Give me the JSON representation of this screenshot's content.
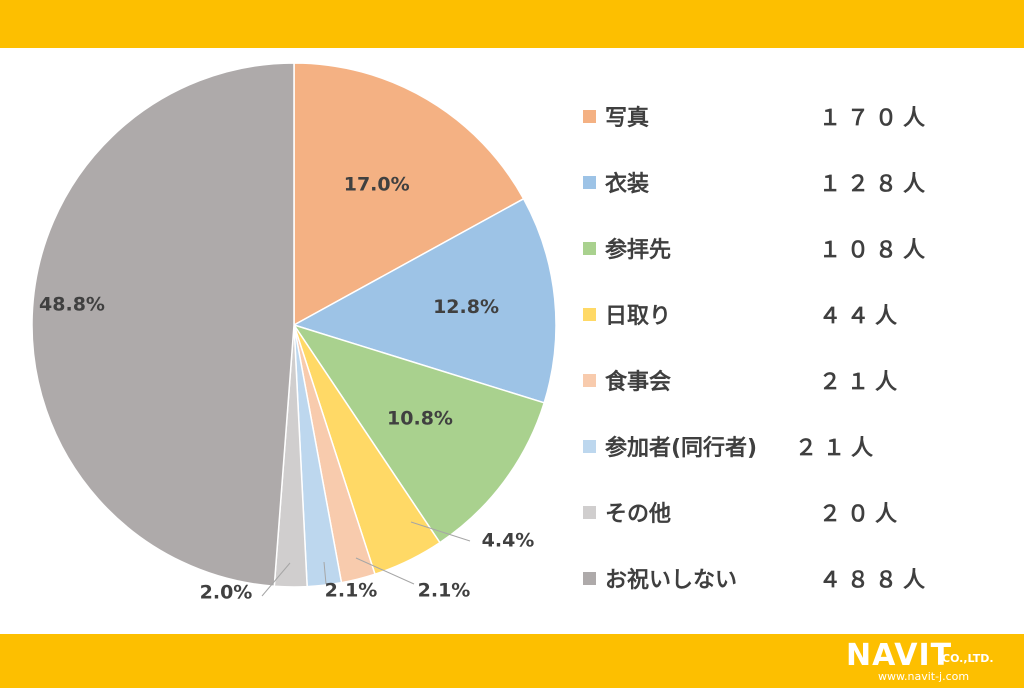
{
  "chart_data": {
    "type": "pie",
    "title": "",
    "categories": [
      "写真",
      "衣装",
      "参拝先",
      "日取り",
      "食事会",
      "参加者(同行者)",
      "その他",
      "お祝いしない"
    ],
    "values": [
      170,
      128,
      108,
      44,
      21,
      21,
      20,
      488
    ],
    "data_labels": [
      "17.0%",
      "12.8%",
      "10.8%",
      "4.4%",
      "2.1%",
      "2.1%",
      "2.0%",
      "48.8%"
    ],
    "counts_text": [
      "１７０人",
      "１２８人",
      "１０８人",
      "４４人",
      "２１人",
      "２１人",
      "２０人",
      "４８８人"
    ],
    "colors": [
      "#f4b183",
      "#9dc3e6",
      "#a9d18e",
      "#ffd966",
      "#f8cbad",
      "#bdd7ee",
      "#d0cece",
      "#aeaaaa"
    ],
    "legend_position": "right"
  },
  "brand": {
    "logo_main": "NAVIT",
    "logo_company": "CO.,LTD.",
    "logo_url": "www.navit-j.com",
    "bar_color": "#fdbf00"
  }
}
